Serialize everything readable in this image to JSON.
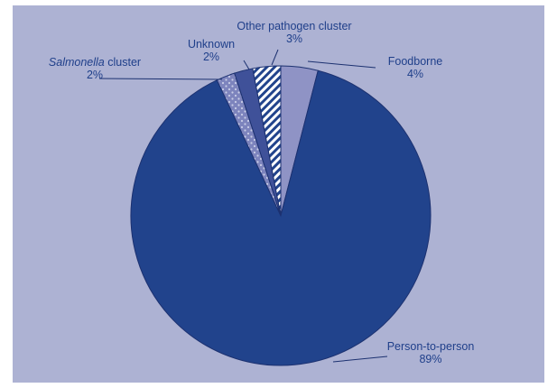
{
  "chart_data": {
    "type": "pie",
    "title": "",
    "slices": [
      {
        "label_parts": [
          {
            "text": "Foodborne",
            "italic": false
          }
        ],
        "percent_label": "4%",
        "value": 4,
        "color": "#8f93c5",
        "pattern": "solid"
      },
      {
        "label_parts": [
          {
            "text": "Person-to-person",
            "italic": false
          }
        ],
        "percent_label": "89%",
        "value": 89,
        "color": "#21438c",
        "pattern": "solid"
      },
      {
        "label_parts": [
          {
            "text": "Salmonella",
            "italic": true
          },
          {
            "text": " cluster",
            "italic": false
          }
        ],
        "percent_label": "2%",
        "value": 2,
        "color": "#7d84bd",
        "pattern": "dots"
      },
      {
        "label_parts": [
          {
            "text": "Unknown",
            "italic": false
          }
        ],
        "percent_label": "2%",
        "value": 2,
        "color": "#3f5199",
        "pattern": "solid"
      },
      {
        "label_parts": [
          {
            "text": "Other pathogen cluster",
            "italic": false
          }
        ],
        "percent_label": "3%",
        "value": 3,
        "color": "#21438c",
        "pattern": "stripes"
      }
    ],
    "colors": {
      "background": "#adb2d3",
      "text": "#1f3f8a",
      "edge": "#1c3170"
    }
  }
}
